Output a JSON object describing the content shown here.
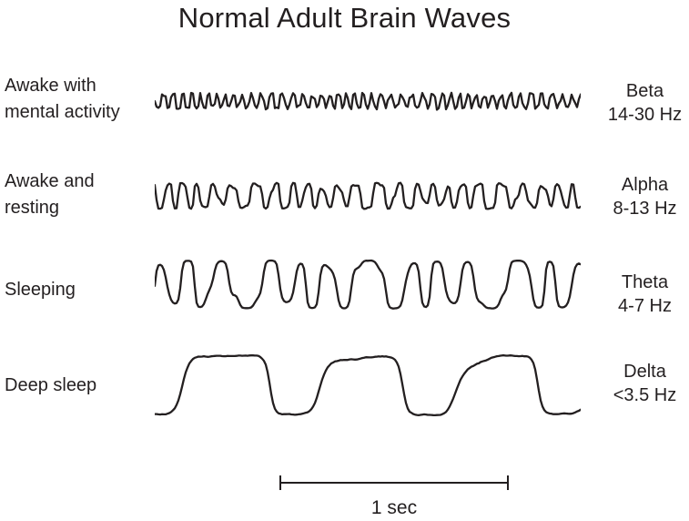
{
  "title": "Normal Adult Brain Waves",
  "ink_color": "#231f20",
  "rows": [
    {
      "state_lines": [
        "Awake with",
        "mental activity"
      ],
      "band": "Beta",
      "range": "14-30 Hz",
      "wave": {
        "cycles": 46,
        "amplitude": 8,
        "fm": 2.0,
        "harm": 0.35,
        "sub": 0.15,
        "envAmp": 0.35,
        "envCycles": 5,
        "clip": 0.15,
        "noise": 1.0,
        "seed": 11
      }
    },
    {
      "state_lines": [
        "Awake and",
        "resting"
      ],
      "band": "Alpha",
      "range": "8-13 Hz",
      "wave": {
        "cycles": 24,
        "amplitude": 13,
        "fm": 1.8,
        "harm": 0.3,
        "sub": 0.25,
        "envAmp": 0.3,
        "envCycles": 4,
        "clip": 0.2,
        "noise": 0.8,
        "seed": 5
      }
    },
    {
      "state_lines": [
        "Sleeping"
      ],
      "band": "Theta",
      "range": "4-7 Hz",
      "wave": {
        "cycles": 12,
        "amplitude": 25,
        "fm": 1.5,
        "harm": 0.25,
        "sub": 0.3,
        "envAmp": 0.2,
        "envCycles": 3,
        "clip": 0.4,
        "noise": 0.8,
        "seed": 9
      }
    },
    {
      "state_lines": [
        "Deep sleep"
      ],
      "band": "Delta",
      "range": "<3.5 Hz",
      "wave": {
        "cycles": 3.1,
        "amplitude": 32,
        "fm": 0.5,
        "harm": 0.12,
        "sub": 0.08,
        "envAmp": 0.12,
        "envCycles": 2,
        "clip": 0.8,
        "noise": 1.4,
        "seed": 3
      }
    }
  ],
  "scale_bar": {
    "label": "1 sec",
    "seconds": 1
  }
}
